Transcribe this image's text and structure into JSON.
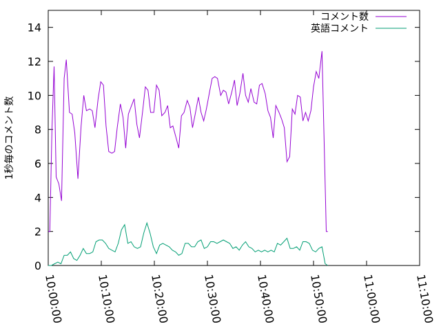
{
  "chart_data": {
    "type": "line",
    "title": "",
    "xlabel": "",
    "ylabel": "1秒毎のコメント数",
    "ylim": [
      0,
      15
    ],
    "yticks": [
      0,
      2,
      4,
      6,
      8,
      10,
      12,
      14
    ],
    "xlim": [
      0,
      70
    ],
    "xticks": [
      {
        "t": 0,
        "label": "10:00:00"
      },
      {
        "t": 10,
        "label": "10:10:00"
      },
      {
        "t": 20,
        "label": "10:20:00"
      },
      {
        "t": 30,
        "label": "10:30:00"
      },
      {
        "t": 40,
        "label": "10:40:00"
      },
      {
        "t": 50,
        "label": "10:50:00"
      },
      {
        "t": 60,
        "label": "11:00:00"
      },
      {
        "t": 70,
        "label": "11:10:00"
      }
    ],
    "grid": false,
    "legend_position": "top-right",
    "series": [
      {
        "name": "コメント数",
        "color": "#9400d3",
        "points": [
          [
            0,
            2
          ],
          [
            0.3,
            2
          ],
          [
            0.7,
            8
          ],
          [
            1.1,
            11.7
          ],
          [
            1.5,
            5.2
          ],
          [
            2,
            4.8
          ],
          [
            2.5,
            3.8
          ],
          [
            3,
            11
          ],
          [
            3.4,
            12.1
          ],
          [
            4,
            9
          ],
          [
            4.5,
            8.9
          ],
          [
            5,
            7.8
          ],
          [
            5.6,
            5.1
          ],
          [
            6.2,
            8.2
          ],
          [
            6.7,
            10
          ],
          [
            7.2,
            9.1
          ],
          [
            7.8,
            9.2
          ],
          [
            8.3,
            9.1
          ],
          [
            8.8,
            8.1
          ],
          [
            9.4,
            9.8
          ],
          [
            9.9,
            10.8
          ],
          [
            10.4,
            10.6
          ],
          [
            10.9,
            8.2
          ],
          [
            11.4,
            6.7
          ],
          [
            12,
            6.6
          ],
          [
            12.5,
            6.7
          ],
          [
            13,
            8.1
          ],
          [
            13.6,
            9.5
          ],
          [
            14.1,
            8.7
          ],
          [
            14.6,
            6.9
          ],
          [
            15.1,
            8.9
          ],
          [
            15.7,
            9.4
          ],
          [
            16.2,
            9.8
          ],
          [
            16.7,
            8.3
          ],
          [
            17.2,
            7.5
          ],
          [
            17.8,
            9.1
          ],
          [
            18.3,
            10.5
          ],
          [
            18.8,
            10.3
          ],
          [
            19.3,
            9
          ],
          [
            19.9,
            9
          ],
          [
            20.4,
            10.6
          ],
          [
            20.9,
            10.3
          ],
          [
            21.4,
            8.8
          ],
          [
            22,
            9
          ],
          [
            22.5,
            9.4
          ],
          [
            23,
            8.1
          ],
          [
            23.5,
            8.2
          ],
          [
            24.1,
            7.5
          ],
          [
            24.6,
            6.9
          ],
          [
            25.1,
            8.8
          ],
          [
            25.6,
            9
          ],
          [
            26.2,
            9.7
          ],
          [
            26.7,
            9.3
          ],
          [
            27.2,
            8.1
          ],
          [
            27.7,
            8.9
          ],
          [
            28.3,
            9.9
          ],
          [
            28.8,
            9
          ],
          [
            29.3,
            8.5
          ],
          [
            29.8,
            9.2
          ],
          [
            30.4,
            10.2
          ],
          [
            30.9,
            11
          ],
          [
            31.4,
            11.1
          ],
          [
            31.9,
            11
          ],
          [
            32.5,
            10
          ],
          [
            33,
            10.3
          ],
          [
            33.5,
            10.2
          ],
          [
            34,
            9.5
          ],
          [
            34.6,
            10.2
          ],
          [
            35.1,
            10.9
          ],
          [
            35.6,
            9.4
          ],
          [
            36.1,
            10.1
          ],
          [
            36.7,
            11.3
          ],
          [
            37.2,
            10
          ],
          [
            37.7,
            9.6
          ],
          [
            38.2,
            10.4
          ],
          [
            38.8,
            9.6
          ],
          [
            39.3,
            9.5
          ],
          [
            39.8,
            10.6
          ],
          [
            40.3,
            10.7
          ],
          [
            40.9,
            10.1
          ],
          [
            41.4,
            9.1
          ],
          [
            41.9,
            8.7
          ],
          [
            42.4,
            7.5
          ],
          [
            42.9,
            9.4
          ],
          [
            43.5,
            9
          ],
          [
            44,
            8.6
          ],
          [
            44.5,
            8.1
          ],
          [
            45,
            6.1
          ],
          [
            45.5,
            6.4
          ],
          [
            46,
            9.2
          ],
          [
            46.5,
            8.9
          ],
          [
            47,
            10
          ],
          [
            47.5,
            9.9
          ],
          [
            48,
            8.5
          ],
          [
            48.5,
            9
          ],
          [
            49,
            8.5
          ],
          [
            49.5,
            9.1
          ],
          [
            50,
            10.5
          ],
          [
            50.5,
            11.4
          ],
          [
            51,
            11
          ],
          [
            51.6,
            12.6
          ],
          [
            52,
            7.3
          ],
          [
            52.4,
            2
          ],
          [
            52.7,
            2
          ]
        ]
      },
      {
        "name": "英語コメント",
        "color": "#009e73",
        "points": [
          [
            0,
            0
          ],
          [
            0.6,
            0
          ],
          [
            1.2,
            0.1
          ],
          [
            1.8,
            0.2
          ],
          [
            2.4,
            0.1
          ],
          [
            3,
            0.6
          ],
          [
            3.6,
            0.6
          ],
          [
            4.2,
            0.8
          ],
          [
            4.8,
            0.4
          ],
          [
            5.4,
            0.3
          ],
          [
            6,
            0.6
          ],
          [
            6.6,
            1
          ],
          [
            7.2,
            0.7
          ],
          [
            7.8,
            0.7
          ],
          [
            8.4,
            0.8
          ],
          [
            9,
            1.4
          ],
          [
            9.6,
            1.5
          ],
          [
            10.2,
            1.5
          ],
          [
            10.8,
            1.3
          ],
          [
            11.4,
            1
          ],
          [
            12,
            0.9
          ],
          [
            12.6,
            0.8
          ],
          [
            13.2,
            1.3
          ],
          [
            13.8,
            2.1
          ],
          [
            14.4,
            2.4
          ],
          [
            15,
            1.3
          ],
          [
            15.6,
            1.4
          ],
          [
            16.2,
            1.1
          ],
          [
            16.8,
            1
          ],
          [
            17.4,
            1.1
          ],
          [
            18,
            1.9
          ],
          [
            18.6,
            2.5
          ],
          [
            19.2,
            1.9
          ],
          [
            19.8,
            1.1
          ],
          [
            20.4,
            0.7
          ],
          [
            21,
            1.2
          ],
          [
            21.6,
            1.3
          ],
          [
            22.2,
            1.2
          ],
          [
            22.8,
            1.1
          ],
          [
            23.4,
            0.9
          ],
          [
            24,
            0.8
          ],
          [
            24.6,
            0.6
          ],
          [
            25.2,
            0.7
          ],
          [
            25.8,
            1.3
          ],
          [
            26.4,
            1.3
          ],
          [
            27,
            1.1
          ],
          [
            27.6,
            1.1
          ],
          [
            28.2,
            1.4
          ],
          [
            28.8,
            1.5
          ],
          [
            29.4,
            1
          ],
          [
            30,
            1.1
          ],
          [
            30.6,
            1.4
          ],
          [
            31.2,
            1.4
          ],
          [
            31.8,
            1.3
          ],
          [
            32.4,
            1.4
          ],
          [
            33,
            1.5
          ],
          [
            33.6,
            1.4
          ],
          [
            34.2,
            1.3
          ],
          [
            34.8,
            1
          ],
          [
            35.4,
            1.1
          ],
          [
            36,
            0.9
          ],
          [
            36.6,
            1.2
          ],
          [
            37.2,
            1.4
          ],
          [
            37.8,
            1.1
          ],
          [
            38.4,
            1
          ],
          [
            39,
            0.8
          ],
          [
            39.6,
            0.9
          ],
          [
            40.2,
            0.8
          ],
          [
            40.8,
            0.9
          ],
          [
            41.4,
            0.8
          ],
          [
            42,
            0.9
          ],
          [
            42.6,
            0.8
          ],
          [
            43.2,
            1.3
          ],
          [
            43.8,
            1.2
          ],
          [
            44.4,
            1.4
          ],
          [
            45,
            1.6
          ],
          [
            45.6,
            1
          ],
          [
            46.2,
            1
          ],
          [
            46.8,
            1.1
          ],
          [
            47.4,
            0.9
          ],
          [
            48,
            1.4
          ],
          [
            48.6,
            1.4
          ],
          [
            49.2,
            1.3
          ],
          [
            49.8,
            0.9
          ],
          [
            50.4,
            0.8
          ],
          [
            51,
            1
          ],
          [
            51.6,
            1.1
          ],
          [
            52.2,
            0.1
          ],
          [
            52.7,
            0
          ]
        ]
      }
    ]
  }
}
